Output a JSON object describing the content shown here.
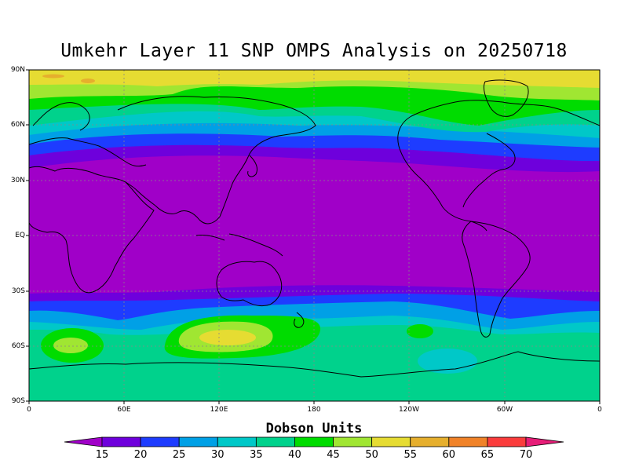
{
  "title": "Umkehr Layer 11 SNP OMPS Analysis on 20250718",
  "units_label": "Dobson Units",
  "y_ticks": [
    "90N",
    "60N",
    "30N",
    "EQ",
    "30S",
    "60S",
    "90S"
  ],
  "x_ticks": [
    "0",
    "60E",
    "120E",
    "180",
    "120W",
    "60W",
    "0"
  ],
  "colorbar": {
    "labels": [
      "15",
      "20",
      "25",
      "30",
      "35",
      "40",
      "45",
      "50",
      "55",
      "60",
      "65",
      "70"
    ],
    "colors": [
      "#a000c8",
      "#6e00dc",
      "#1e3cff",
      "#00a0e6",
      "#00c8c8",
      "#00d28c",
      "#00dc00",
      "#a0e632",
      "#e6dc32",
      "#e6af2d",
      "#f08228",
      "#fa3c3c",
      "#e61e78"
    ]
  }
}
